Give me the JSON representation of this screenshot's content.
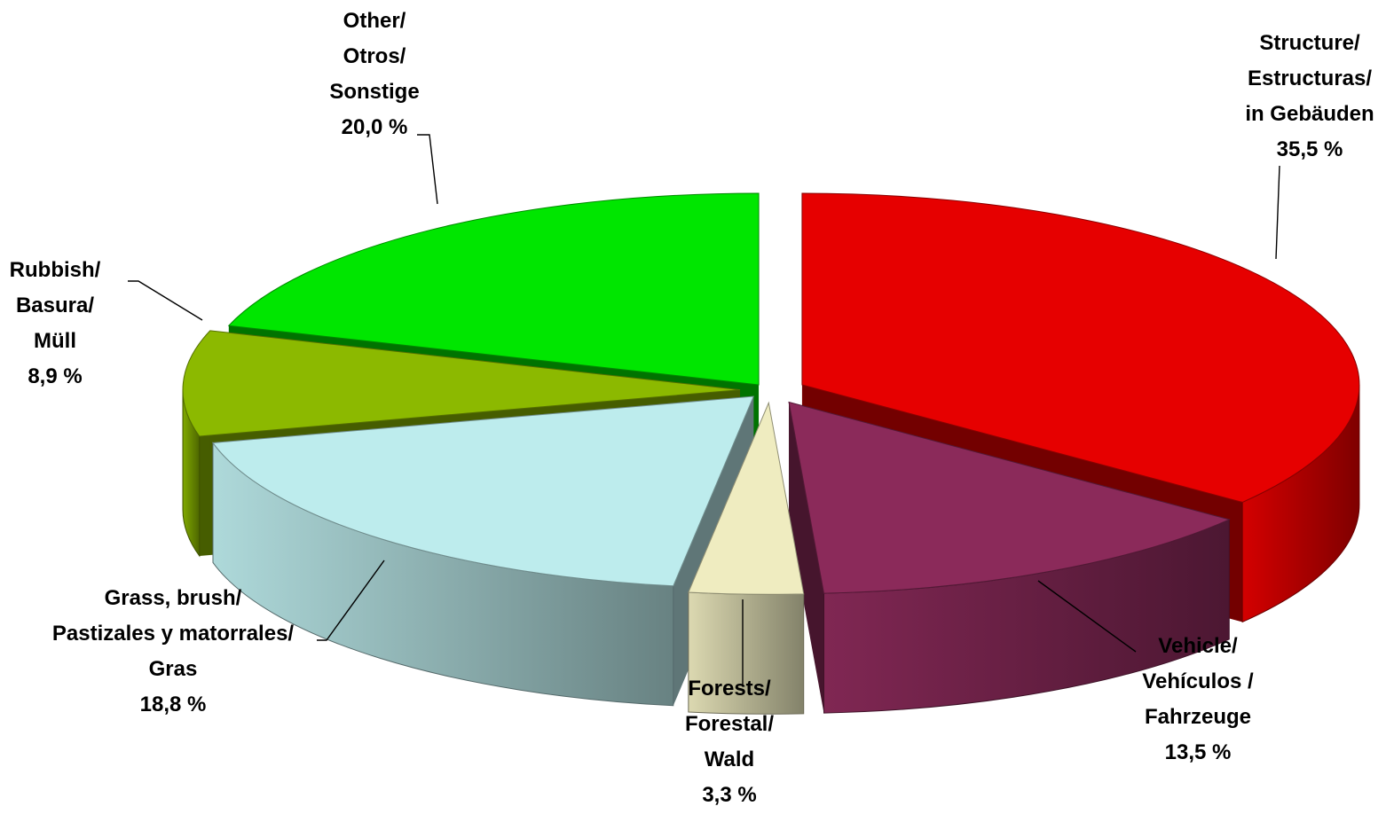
{
  "chart_data": {
    "type": "pie",
    "style": "3d-exploded",
    "title": "",
    "categories": [
      "Structure/ Estructuras/ in Gebäuden",
      "Vehicle/ Vehículos / Fahrzeuge",
      "Forests/ Forestal/ Wald",
      "Grass, brush/ Pastizales y matorrales/ Gras",
      "Rubbish/ Basura/ Müll",
      "Other/ Otros/ Sonstige"
    ],
    "values": [
      35.5,
      13.5,
      3.3,
      18.8,
      8.9,
      20.0
    ],
    "colors": [
      "#e60000",
      "#8b2a5a",
      "#efecc0",
      "#bdeced",
      "#8cb900",
      "#00e600"
    ],
    "slices": [
      {
        "key": "structure",
        "label_lines": [
          "Structure/",
          "Estructuras/",
          "in Gebäuden"
        ],
        "value": 35.5,
        "value_label": "35,5 %",
        "color": "#e60000"
      },
      {
        "key": "vehicle",
        "label_lines": [
          "Vehicle/",
          "Vehículos /",
          "Fahrzeuge"
        ],
        "value": 13.5,
        "value_label": "13,5 %",
        "color": "#8b2a5a"
      },
      {
        "key": "forests",
        "label_lines": [
          "Forests/",
          "Forestal/",
          "Wald"
        ],
        "value": 3.3,
        "value_label": "3,3 %",
        "color": "#efecc0"
      },
      {
        "key": "grass",
        "label_lines": [
          "Grass, brush/",
          "Pastizales y matorrales/",
          "Gras"
        ],
        "value": 18.8,
        "value_label": "18,8 %",
        "color": "#bdeced"
      },
      {
        "key": "rubbish",
        "label_lines": [
          "Rubbish/",
          "Basura/",
          "Müll"
        ],
        "value": 8.9,
        "value_label": "8,9 %",
        "color": "#8cb900"
      },
      {
        "key": "other",
        "label_lines": [
          "Other/",
          "Otros/",
          "Sonstige"
        ],
        "value": 20.0,
        "value_label": "20,0 %",
        "color": "#00e600"
      }
    ],
    "legend": "none",
    "grid": false
  }
}
